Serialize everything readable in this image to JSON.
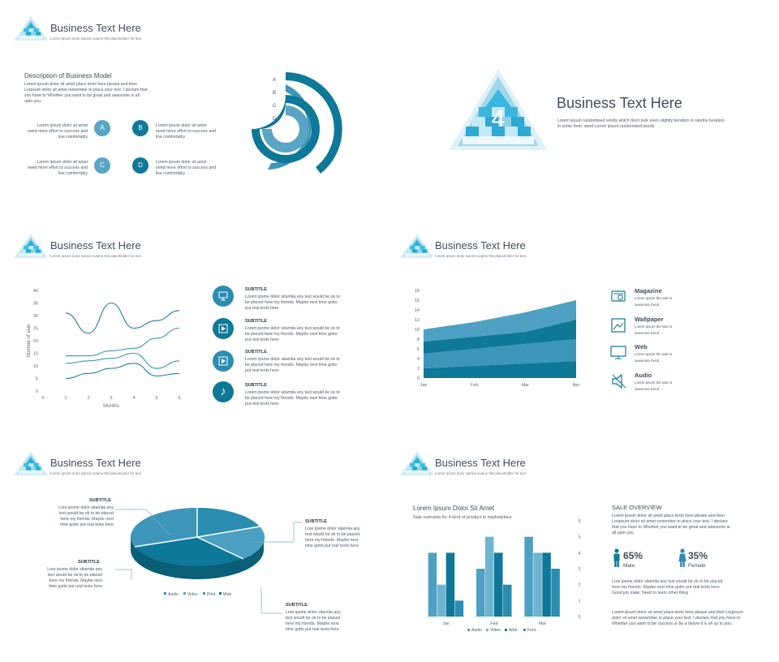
{
  "colors": {
    "dark": "#0e7898",
    "mid": "#2b8db0",
    "light": "#4ea1c2",
    "pale": "#6fb4cf",
    "text": "#3e4e60"
  },
  "slide1": {
    "title": "Business Text Here",
    "subtitle": "Lorem Ipsum dolor siamet suame this placeholder for text.",
    "section_title": "Description of Business Model",
    "description": "Lorem ipsum dolor sit amet place texts here please and then Lorpsum dolor sit amet remember to place your text. I declare that you have to Whether you want to be great and awesome is all upto you.",
    "items": [
      {
        "letter": "A",
        "text_line1": "Lorem ipsum dolor sit amet",
        "text_line2": "need more effort to success and",
        "text_line3": "live comfortably"
      },
      {
        "letter": "B",
        "text_line1": "Lorem ipsum dolor sit amet",
        "text_line2": "need more effort to success and",
        "text_line3": "live comfortably"
      },
      {
        "letter": "C",
        "text_line1": "Lorem ipsum dolor sit amet",
        "text_line2": "need more effort to success and",
        "text_line3": "live comfortably"
      },
      {
        "letter": "D",
        "text_line1": "Lorem ipsum dolor sit amet",
        "text_line2": "need more effort to success and",
        "text_line3": "live comfortably"
      }
    ],
    "arc_labels": [
      "A",
      "B",
      "C",
      "D"
    ]
  },
  "slide2": {
    "number": "4",
    "title": "Business Text Here",
    "text": "Lorem ipsum randomised words which don't look even slightly beration or randoy beration in some form. word Lorem ipsum randomised words"
  },
  "slide3": {
    "title": "Business Text Here",
    "subtitle": "Lorem Ipsum dolor siamet suame this placeholder for text.",
    "chart_data": {
      "type": "line",
      "xlabel": "Months",
      "ylabel": "Number of sale",
      "x": [
        0,
        1,
        2,
        3,
        4,
        5,
        6
      ],
      "ylim": [
        0,
        40
      ],
      "yticks": [
        0,
        5,
        10,
        15,
        20,
        25,
        30,
        35,
        40
      ],
      "series": [
        {
          "values": [
            null,
            31,
            23,
            35,
            25,
            28,
            32
          ]
        },
        {
          "values": [
            null,
            14,
            14,
            16,
            17,
            21,
            25
          ]
        },
        {
          "values": [
            null,
            11,
            12,
            13,
            15,
            9,
            12
          ]
        },
        {
          "values": [
            null,
            5,
            7,
            9,
            11,
            6,
            7
          ]
        }
      ]
    },
    "items": [
      {
        "subtitle": "SUBTITLE",
        "text": [
          "Lorem ipsme dolor sitamita any text would be ok to",
          "be placed here my friends. Maybe next time gotto",
          "put real texts here"
        ],
        "icon": "monitor-icon"
      },
      {
        "subtitle": "SUBTITLE",
        "text": [
          "Lorem ipsme dolor sitamita any text would be ok to",
          "be placed here my friends. Maybe next time gotto",
          "put real texts here"
        ],
        "icon": "film-icon"
      },
      {
        "subtitle": "SUBTITLE",
        "text": [
          "Lorem ipsme dolor sitamita any text would be ok to",
          "be placed here my friends. Maybe next time gotto",
          "put real texts here"
        ],
        "icon": "film-icon"
      },
      {
        "subtitle": "SUBTITLE",
        "text": [
          "Lorem ipsme dolor sitamita any text would be ok to",
          "be placed here my friends. Maybe next time gotto",
          "put real texts here"
        ],
        "icon": "music-note-icon"
      }
    ]
  },
  "slide4": {
    "title": "Business Text Here",
    "subtitle": "Lorem Ipsum dolor siamet suame this placeholder for text.",
    "chart_data": {
      "type": "area",
      "categories": [
        "Jan",
        "Feb",
        "Mar",
        "Apr"
      ],
      "ylim": [
        0,
        18
      ],
      "yticks": [
        0,
        2,
        4,
        6,
        8,
        10,
        12,
        14,
        16,
        18
      ],
      "series": [
        {
          "values": [
            2,
            2.5,
            3,
            3.5
          ]
        },
        {
          "values": [
            3,
            3.5,
            4,
            4.5
          ]
        },
        {
          "values": [
            2.5,
            2.5,
            2.5,
            4
          ]
        },
        {
          "values": [
            2.5,
            3,
            4,
            4
          ]
        }
      ]
    },
    "legend": [
      {
        "title": "Magazine",
        "text1": "Lorem ipsum the sale is",
        "text2": "awesome trend",
        "icon": "magazine-icon"
      },
      {
        "title": "Wallpaper",
        "text1": "Lorem ipsum the sale is",
        "text2": "awesome trend",
        "icon": "wallpaper-icon"
      },
      {
        "title": "Web",
        "text1": "Lorem ipsum the sale is",
        "text2": "awesome trend",
        "icon": "web-monitor-icon"
      },
      {
        "title": "Audio",
        "text1": "Lorem ipsum the sale is",
        "text2": "awesome trend",
        "icon": "speaker-icon"
      }
    ]
  },
  "slide5": {
    "title": "Business Text Here",
    "subtitle": "Lorem Ipsum dolor siamet suame this placeholder for text.",
    "chart_data": {
      "type": "pie",
      "categories": [
        "Audio",
        "Video",
        "Print",
        "Web"
      ],
      "values": [
        27,
        23,
        28,
        22
      ]
    },
    "callouts": [
      {
        "subtitle": "SUBTITLE",
        "text": [
          "Lore ipsme dolor sitamita any",
          "text would be ok to be placed",
          "here my friends. Maybe next",
          "time gotto put real texts here"
        ]
      },
      {
        "subtitle": "SUBTITLE",
        "text": [
          "Lore ipsme dolor sitamita any",
          "text would be ok to be placed",
          "here my friends. Maybe next",
          "time gotto put real texts here"
        ]
      },
      {
        "subtitle": "SUBTITLE",
        "text": [
          "Lore ipsme dolor sitamita any",
          "text would be ok to be placed",
          "here my friends. Maybe next",
          "time gotto put real texts here"
        ]
      },
      {
        "subtitle": "SUBTITLE",
        "text": [
          "Lore ipsme dolor sitamita any",
          "text would be ok to be placed",
          "here my friends. Maybe next",
          "time gotto put real texts here"
        ]
      }
    ]
  },
  "slide6": {
    "title": "Business Text Here",
    "subtitle": "Lorem Ipsum dolor siamet suame this placeholder for text.",
    "chart_title": "Lorem Ipsum Dolor Sit Amet",
    "chart_subtitle": "Sale overview for 4 kind of product in marketplace",
    "chart_data": {
      "type": "bar",
      "categories": [
        "Jan",
        "Feb",
        "Mar"
      ],
      "ylim": [
        0,
        6
      ],
      "yticks": [
        0,
        1,
        2,
        3,
        4,
        5,
        6
      ],
      "series": [
        {
          "name": "Audio",
          "values": [
            4,
            3,
            5
          ]
        },
        {
          "name": "Video",
          "values": [
            2,
            5,
            4
          ]
        },
        {
          "name": "Web",
          "values": [
            4,
            4,
            4
          ]
        },
        {
          "name": "Font",
          "values": [
            1,
            2,
            3
          ]
        }
      ]
    },
    "overview_title": "SALE OVERVIEW",
    "overview_text": [
      "Lorem ipsum dolor sit amet place texts here please and then",
      "Loripsum dolor sit amet remember to place your text. I declare",
      "that you have to Whether you want to be great and awesome is",
      "all upto you."
    ],
    "male_pct": "65%",
    "male_label": "Male",
    "female_pct": "35%",
    "female_label": "Female",
    "text2": [
      "Lore ipsme dolor sitamita any text would be ok to be placed",
      "here my friends. Maybe next time gotto put real texts here.",
      "Good job mate. Need to learn other thing"
    ],
    "text3": [
      "Lorem ipsum dolor sit amet place texts here please and then Lorjpsum",
      "dolor sit amet remember to place your text. I declare that you have to",
      "Whether you want to be success or be a failure it is all up to you."
    ]
  }
}
